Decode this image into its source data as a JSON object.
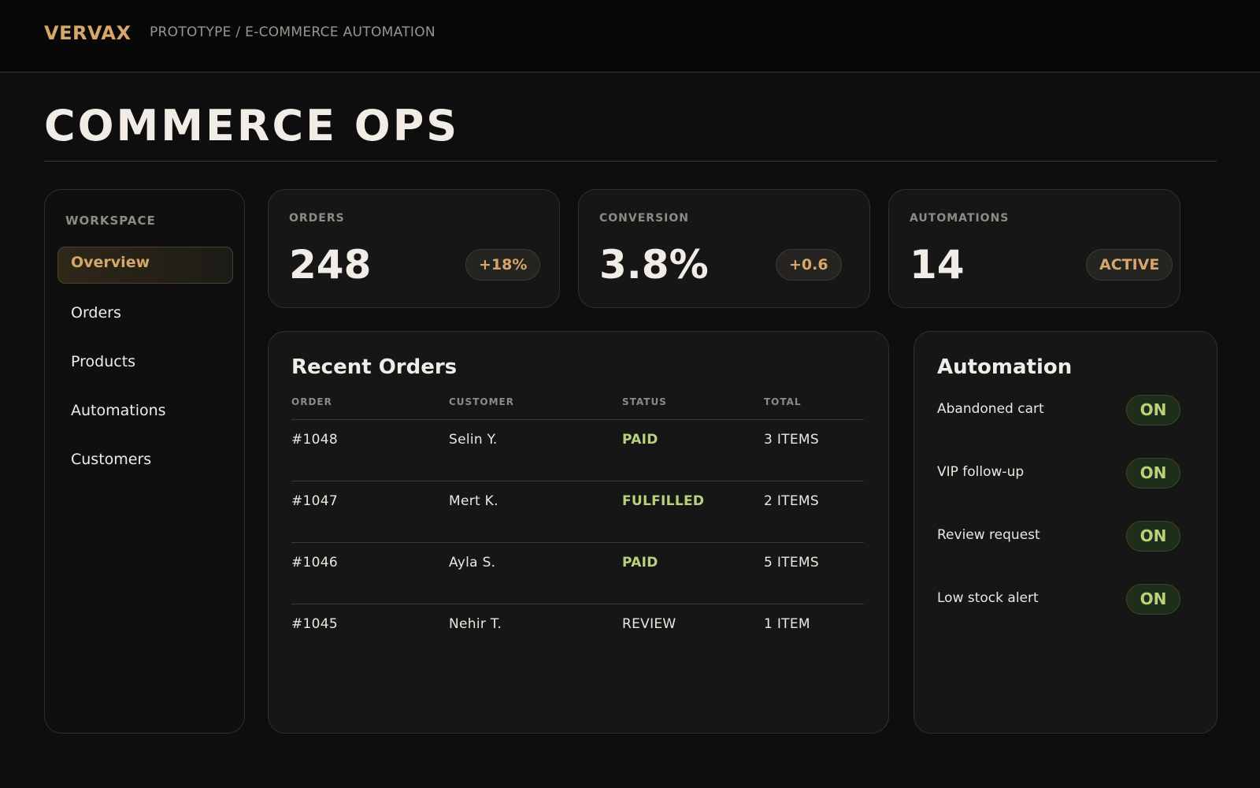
{
  "header": {
    "brand": "VERVAX",
    "breadcrumb": "PROTOTYPE / E-COMMERCE AUTOMATION"
  },
  "page_title": "COMMERCE OPS",
  "sidebar": {
    "section_label": "WORKSPACE",
    "items": [
      {
        "label": "Overview",
        "active": true
      },
      {
        "label": "Orders",
        "active": false
      },
      {
        "label": "Products",
        "active": false
      },
      {
        "label": "Automations",
        "active": false
      },
      {
        "label": "Customers",
        "active": false
      }
    ]
  },
  "stats": [
    {
      "label": "ORDERS",
      "value": "248",
      "badge": "+18%"
    },
    {
      "label": "CONVERSION",
      "value": "3.8%",
      "badge": "+0.6"
    },
    {
      "label": "AUTOMATIONS",
      "value": "14",
      "badge": "ACTIVE"
    }
  ],
  "recent_orders": {
    "title": "Recent Orders",
    "columns": [
      "ORDER",
      "CUSTOMER",
      "STATUS",
      "TOTAL"
    ],
    "rows": [
      {
        "order": "#1048",
        "customer": "Selin Y.",
        "status": "PAID",
        "total": "3 ITEMS"
      },
      {
        "order": "#1047",
        "customer": "Mert K.",
        "status": "FULFILLED",
        "total": "2 ITEMS"
      },
      {
        "order": "#1046",
        "customer": "Ayla S.",
        "status": "PAID",
        "total": "5 ITEMS"
      },
      {
        "order": "#1045",
        "customer": "Nehir T.",
        "status": "REVIEW",
        "total": "1 ITEM"
      }
    ]
  },
  "automation": {
    "title": "Automation",
    "items": [
      {
        "label": "Abandoned cart",
        "state": "ON"
      },
      {
        "label": "VIP follow-up",
        "state": "ON"
      },
      {
        "label": "Review request",
        "state": "ON"
      },
      {
        "label": "Low stock alert",
        "state": "ON"
      }
    ]
  },
  "colors": {
    "accent": "#d6a66a",
    "success": "#b8d27c",
    "background": "#0e0e0e",
    "card": "#161616"
  }
}
